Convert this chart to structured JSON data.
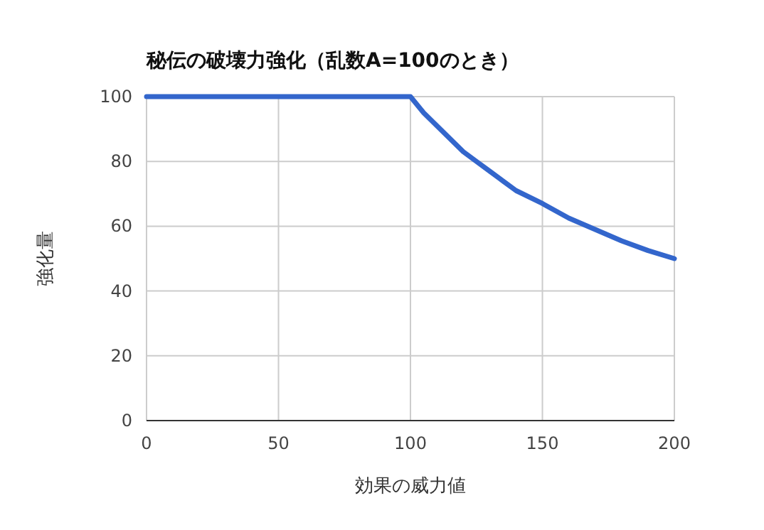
{
  "chart_data": {
    "type": "line",
    "title": "秘伝の破壊力強化（乱数A=100のとき）",
    "xlabel": "効果の威力値",
    "ylabel": "強化量",
    "xlim": [
      0,
      200
    ],
    "ylim": [
      0,
      100
    ],
    "xticks": [
      0,
      50,
      100,
      150,
      200
    ],
    "yticks": [
      0,
      20,
      40,
      60,
      80,
      100
    ],
    "grid": true,
    "series": [
      {
        "color": "#3366cc",
        "x": [
          0,
          50,
          100,
          105,
          110,
          115,
          120,
          125,
          130,
          135,
          140,
          150,
          160,
          170,
          180,
          190,
          200
        ],
        "values": [
          100,
          100,
          100,
          95,
          91,
          87,
          83,
          80,
          77,
          74,
          71,
          67,
          62.5,
          59,
          55.5,
          52.5,
          50
        ]
      }
    ]
  }
}
